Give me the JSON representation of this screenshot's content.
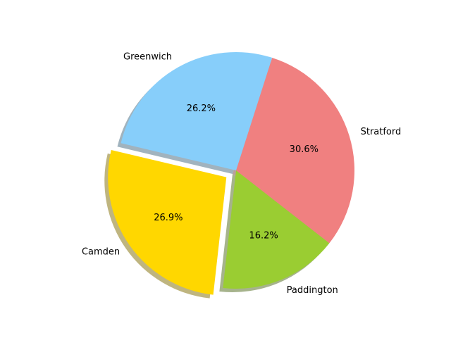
{
  "chart_data": {
    "type": "pie",
    "slices": [
      {
        "label": "Stratford",
        "value": 30.6,
        "pct_label": "30.6%",
        "color": "#f08080",
        "explode": false
      },
      {
        "label": "Greenwich",
        "value": 26.2,
        "pct_label": "26.2%",
        "color": "#87cefa",
        "explode": false
      },
      {
        "label": "Camden",
        "value": 26.9,
        "pct_label": "26.9%",
        "color": "#ffd700",
        "explode": true
      },
      {
        "label": "Paddington",
        "value": 16.2,
        "pct_label": "16.2%",
        "color": "#9acd32",
        "explode": false
      }
    ],
    "shadow": true,
    "legend": false
  }
}
